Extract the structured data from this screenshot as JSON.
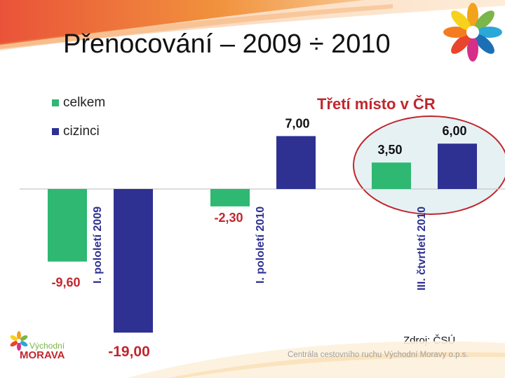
{
  "slide": {
    "title": "Přenocování – 2009 ÷ 2010",
    "headline": "Třetí místo v ČR",
    "source": "Zdroj: ČSÚ",
    "footer": "Centrála cestovního ruchu Východní Moravy o.p.s.",
    "logo": {
      "line1": "Východní",
      "line2": "MORAVA"
    }
  },
  "colors": {
    "celkem": "#2eb872",
    "cizinci": "#2e3192",
    "highlight_fill": "#e6f1f4",
    "highlight_stroke": "#c0272d",
    "label_red": "#c0272d",
    "label_dark": "#111111",
    "axis": "#c8c8c8"
  },
  "chart_data": {
    "type": "bar",
    "categories": [
      "I. pololetí 2009",
      "I. pololetí 2010",
      "III. čtvrtletí 2010"
    ],
    "series": [
      {
        "name": "celkem",
        "values": [
          -9.6,
          -2.3,
          3.5
        ],
        "labels": [
          "-9,60",
          "-2,30",
          "3,50"
        ]
      },
      {
        "name": "cizinci",
        "values": [
          -19.0,
          7.0,
          6.0
        ],
        "labels": [
          "-19,00",
          "7,00",
          "6,00"
        ]
      }
    ],
    "ylim": [
      -19.0,
      7.0
    ],
    "legend": {
      "placement": "top-left",
      "entries": [
        "celkem",
        "cizinci"
      ]
    },
    "highlight": {
      "category": "III. čtvrtletí 2010",
      "text": "Třetí místo v ČR"
    },
    "grid": false
  }
}
